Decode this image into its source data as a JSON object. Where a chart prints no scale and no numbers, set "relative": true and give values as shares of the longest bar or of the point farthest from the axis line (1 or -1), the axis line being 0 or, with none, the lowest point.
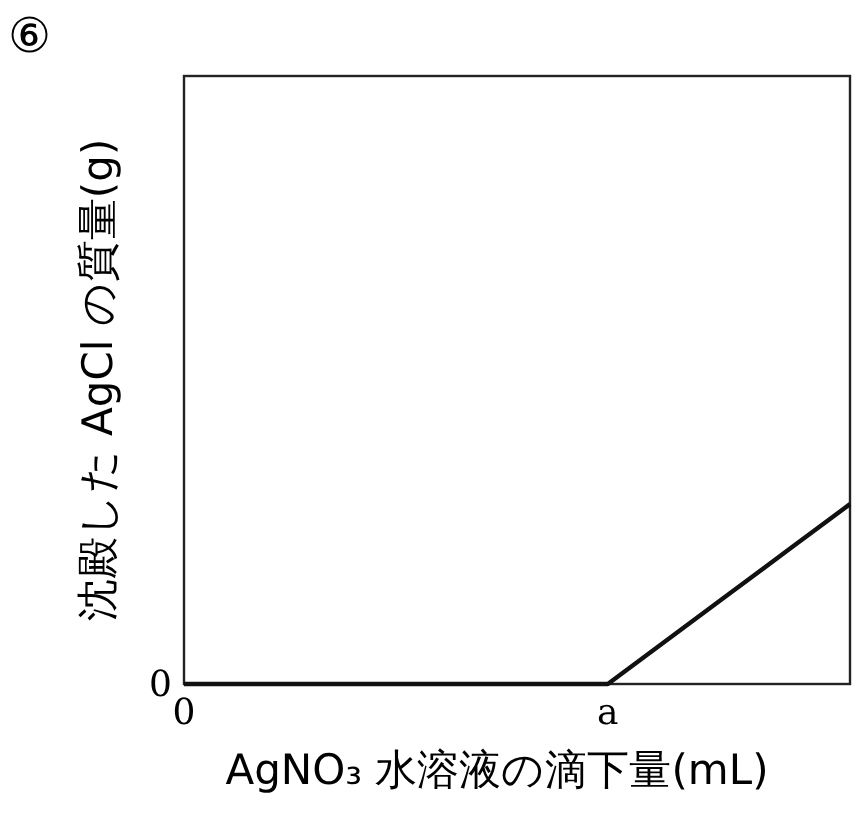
{
  "chart_data": {
    "type": "line",
    "xlabel": "AgNO₃ 水溶液の滴下量(mL)",
    "ylabel": "沈殿した AgCl の質量(g)",
    "categories": [
      "0",
      null,
      null,
      null,
      null,
      null,
      null,
      "a",
      null,
      null,
      null,
      null
    ],
    "values": [
      0,
      0,
      0,
      0,
      0,
      0,
      0,
      0,
      0.25,
      0.5,
      0.75,
      1
    ],
    "color": "#111111",
    "relative": true,
    "annotations": [
      "⑥",
      {
        "text": "0",
        "x": "0",
        "y": 0
      }
    ],
    "marker": "none",
    "line_style": "solid"
  }
}
